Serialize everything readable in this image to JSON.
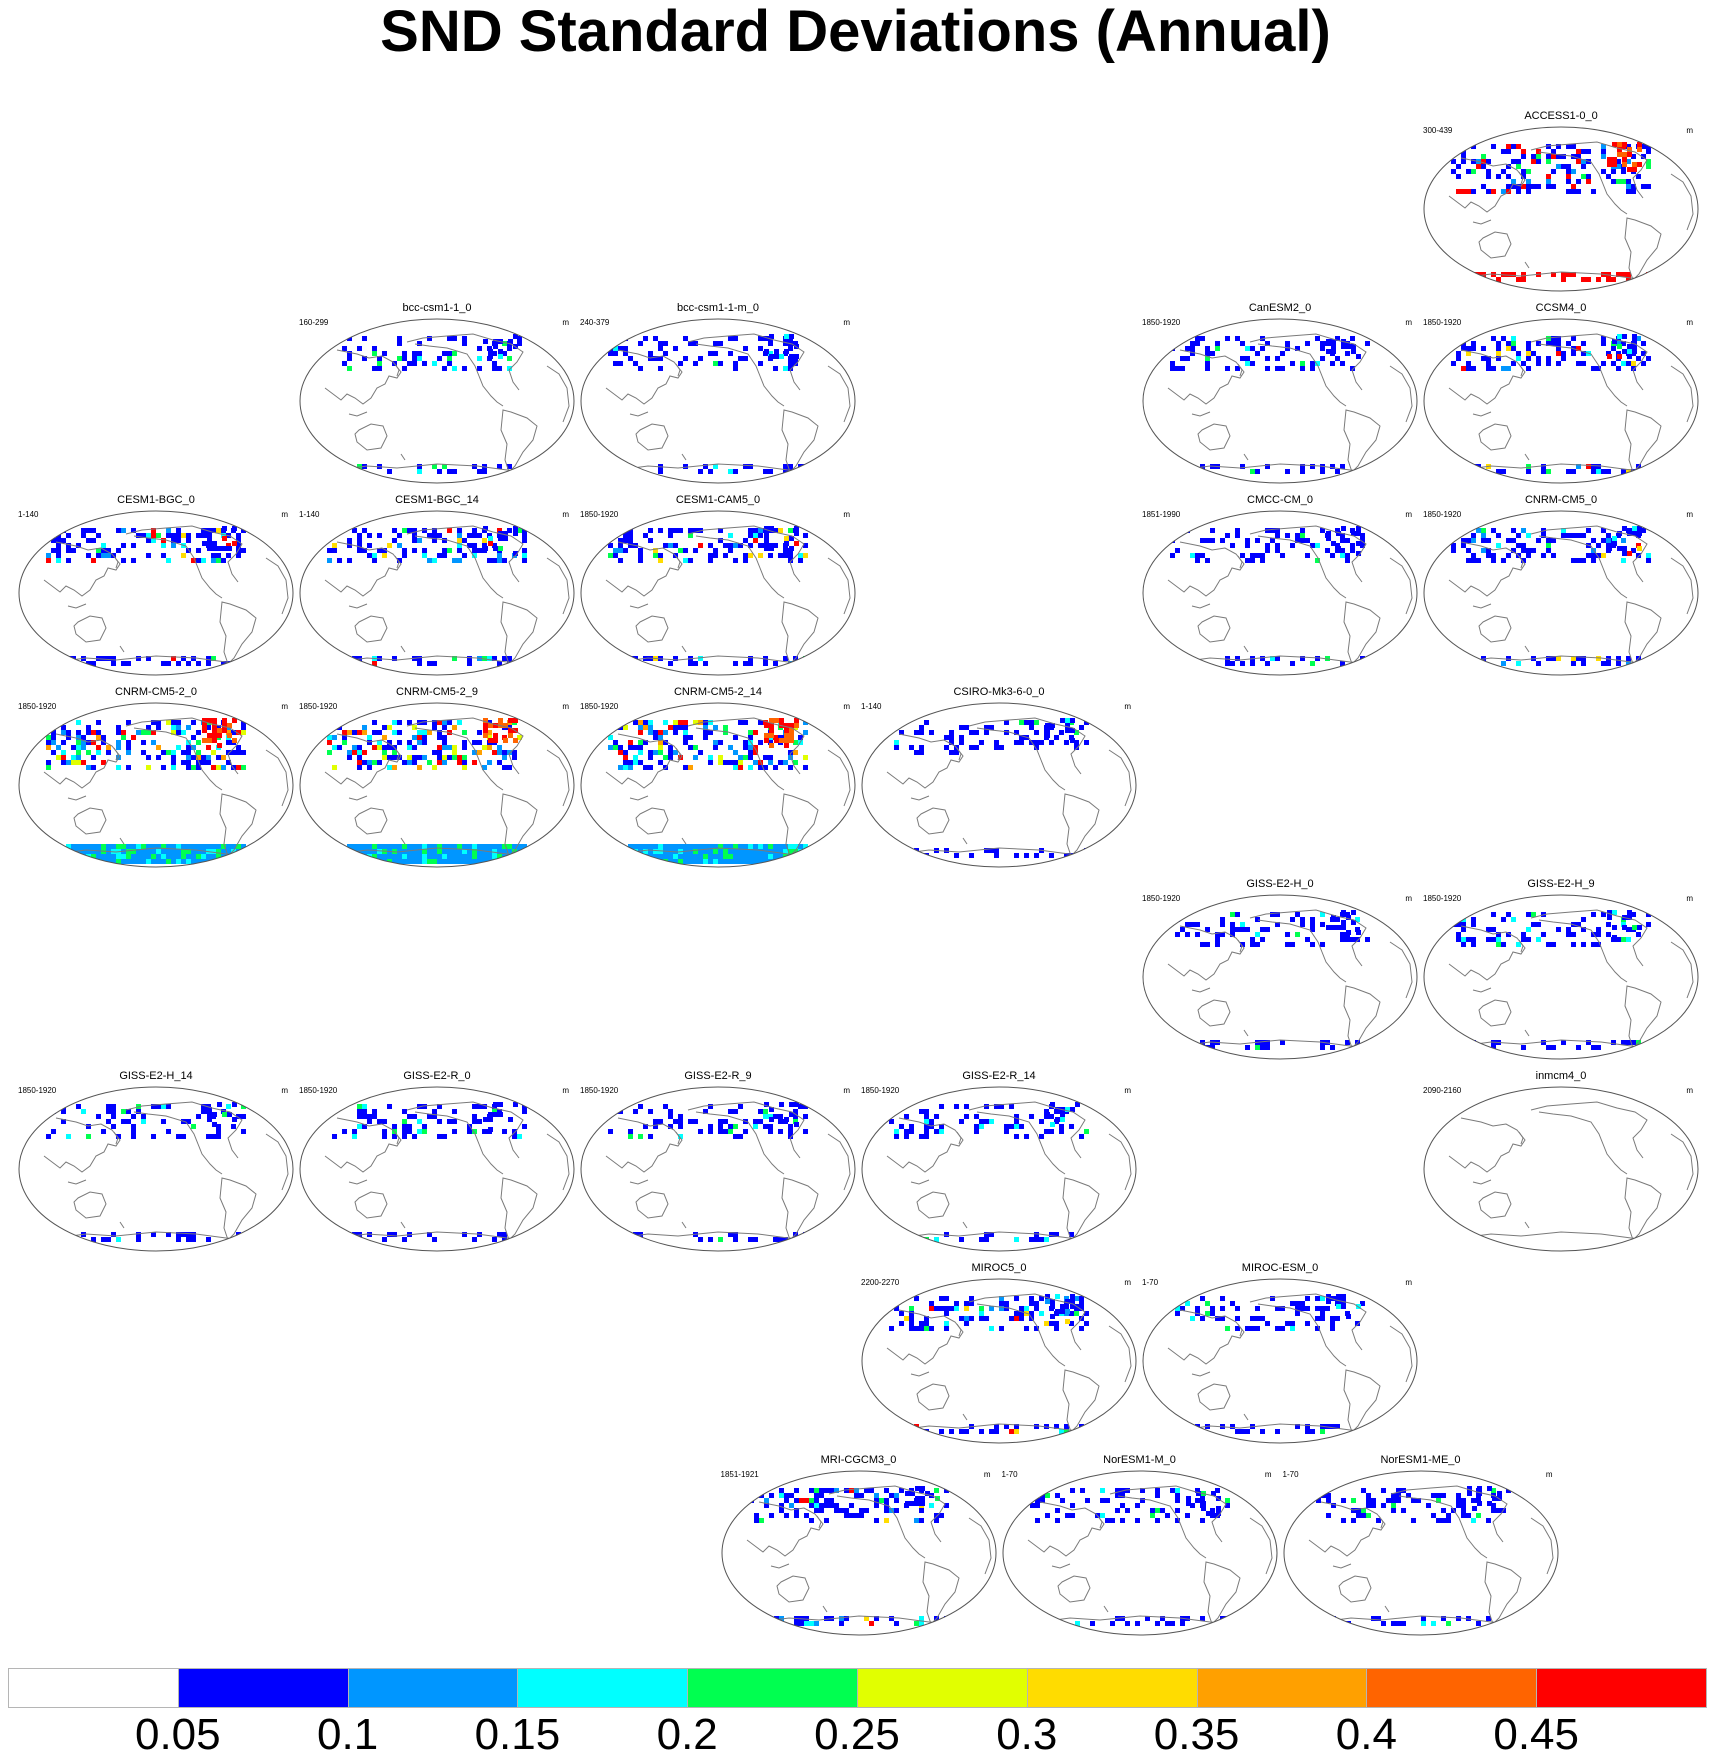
{
  "title": "SND Standard Deviations (Annual)",
  "units_label": "m",
  "colorbar": {
    "colors": [
      "#ffffff",
      "#0000ff",
      "#0096ff",
      "#00ffff",
      "#00ff50",
      "#e1ff00",
      "#ffdc00",
      "#ffa000",
      "#ff6400",
      "#ff0000"
    ],
    "ticks": [
      "0.05",
      "0.1",
      "0.15",
      "0.2",
      "0.25",
      "0.3",
      "0.35",
      "0.4",
      "0.45"
    ]
  },
  "panels": [
    {
      "id": "access1-0-0",
      "label": "ACCESS1-0_0",
      "years": "300-439",
      "row": 0,
      "col": 5,
      "intensity": "high"
    },
    {
      "id": "bcc-csm1-1-0",
      "label": "bcc-csm1-1_0",
      "years": "160-299",
      "row": 1,
      "col": 1,
      "intensity": "low"
    },
    {
      "id": "bcc-csm1-1-m-0",
      "label": "bcc-csm1-1-m_0",
      "years": "240-379",
      "row": 1,
      "col": 2,
      "intensity": "low"
    },
    {
      "id": "canesm2-0",
      "label": "CanESM2_0",
      "years": "1850-1920",
      "row": 1,
      "col": 4,
      "intensity": "low"
    },
    {
      "id": "ccsm4-0",
      "label": "CCSM4_0",
      "years": "1850-1920",
      "row": 1,
      "col": 5,
      "intensity": "mid"
    },
    {
      "id": "cesm1-bgc-0",
      "label": "CESM1-BGC_0",
      "years": "1-140",
      "row": 2,
      "col": 0,
      "intensity": "mid"
    },
    {
      "id": "cesm1-bgc-14",
      "label": "CESM1-BGC_14",
      "years": "1-140",
      "row": 2,
      "col": 1,
      "intensity": "mid"
    },
    {
      "id": "cesm1-cam5-0",
      "label": "CESM1-CAM5_0",
      "years": "1850-1920",
      "row": 2,
      "col": 2,
      "intensity": "mid"
    },
    {
      "id": "cmcc-cm-0",
      "label": "CMCC-CM_0",
      "years": "1851-1990",
      "row": 2,
      "col": 4,
      "intensity": "low"
    },
    {
      "id": "cnrm-cm5-0",
      "label": "CNRM-CM5_0",
      "years": "1850-1920",
      "row": 2,
      "col": 5,
      "intensity": "mid"
    },
    {
      "id": "cnrm-cm5-2-0",
      "label": "CNRM-CM5-2_0",
      "years": "1850-1920",
      "row": 3,
      "col": 0,
      "intensity": "veryhigh"
    },
    {
      "id": "cnrm-cm5-2-9",
      "label": "CNRM-CM5-2_9",
      "years": "1850-1920",
      "row": 3,
      "col": 1,
      "intensity": "veryhigh"
    },
    {
      "id": "cnrm-cm5-2-14",
      "label": "CNRM-CM5-2_14",
      "years": "1850-1920",
      "row": 3,
      "col": 2,
      "intensity": "veryhigh"
    },
    {
      "id": "csiro-mk3-6-0-0",
      "label": "CSIRO-Mk3-6-0_0",
      "years": "1-140",
      "row": 3,
      "col": 3,
      "intensity": "low"
    },
    {
      "id": "giss-e2-h-0",
      "label": "GISS-E2-H_0",
      "years": "1850-1920",
      "row": 4,
      "col": 4,
      "intensity": "low"
    },
    {
      "id": "giss-e2-h-9",
      "label": "GISS-E2-H_9",
      "years": "1850-1920",
      "row": 4,
      "col": 5,
      "intensity": "low"
    },
    {
      "id": "giss-e2-h-14",
      "label": "GISS-E2-H_14",
      "years": "1850-1920",
      "row": 5,
      "col": 0,
      "intensity": "low"
    },
    {
      "id": "giss-e2-r-0",
      "label": "GISS-E2-R_0",
      "years": "1850-1920",
      "row": 5,
      "col": 1,
      "intensity": "low"
    },
    {
      "id": "giss-e2-r-9",
      "label": "GISS-E2-R_9",
      "years": "1850-1920",
      "row": 5,
      "col": 2,
      "intensity": "low"
    },
    {
      "id": "giss-e2-r-14",
      "label": "GISS-E2-R_14",
      "years": "1850-1920",
      "row": 5,
      "col": 3,
      "intensity": "low"
    },
    {
      "id": "inmcm4-0",
      "label": "inmcm4_0",
      "years": "2090-2160",
      "row": 5,
      "col": 5,
      "intensity": "none"
    },
    {
      "id": "miroc5-0",
      "label": "MIROC5_0",
      "years": "2200-2270",
      "row": 6,
      "col": 3,
      "intensity": "mid"
    },
    {
      "id": "miroc-esm-0",
      "label": "MIROC-ESM_0",
      "years": "1-70",
      "row": 6,
      "col": 4,
      "intensity": "low"
    },
    {
      "id": "mri-cgcm3-0",
      "label": "MRI-CGCM3_0",
      "years": "1851-1921",
      "row": 7,
      "col": 2.5,
      "intensity": "mid"
    },
    {
      "id": "noresm1-m-0",
      "label": "NorESM1-M_0",
      "years": "1-70",
      "row": 7,
      "col": 3.5,
      "intensity": "low"
    },
    {
      "id": "noresm1-me-0",
      "label": "NorESM1-ME_0",
      "years": "1-70",
      "row": 7,
      "col": 4.5,
      "intensity": "low"
    }
  ]
}
